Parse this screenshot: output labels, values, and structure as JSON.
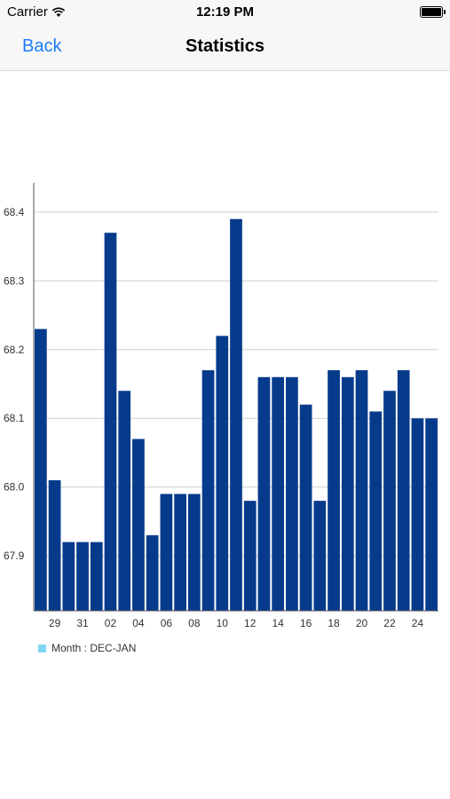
{
  "status_bar": {
    "carrier": "Carrier",
    "time": "12:19 PM"
  },
  "nav": {
    "back_label": "Back",
    "title": "Statistics"
  },
  "chart_data": {
    "type": "bar",
    "x_tick_labels": [
      "29",
      "31",
      "02",
      "04",
      "06",
      "08",
      "10",
      "12",
      "14",
      "16",
      "18",
      "20",
      "22",
      "24"
    ],
    "values": [
      68.23,
      68.01,
      67.92,
      67.92,
      67.92,
      68.37,
      68.14,
      68.07,
      67.93,
      67.99,
      67.99,
      67.99,
      68.17,
      68.22,
      68.39,
      67.98,
      68.16,
      68.16,
      68.16,
      68.12,
      67.98,
      68.17,
      68.16,
      68.17,
      68.11,
      68.14,
      68.17,
      68.1,
      68.1
    ],
    "y_ticks": [
      67.9,
      68.0,
      68.1,
      68.2,
      68.3,
      68.4
    ],
    "y_tick_labels": [
      "67.9",
      "68.0",
      "68.1",
      "68.2",
      "68.3",
      "68.4"
    ],
    "ylim": [
      67.82,
      68.44
    ],
    "legend": "Month : DEC-JAN",
    "bar_color": "#063b8c",
    "legend_color": "#7fd6f2",
    "grid": true
  }
}
